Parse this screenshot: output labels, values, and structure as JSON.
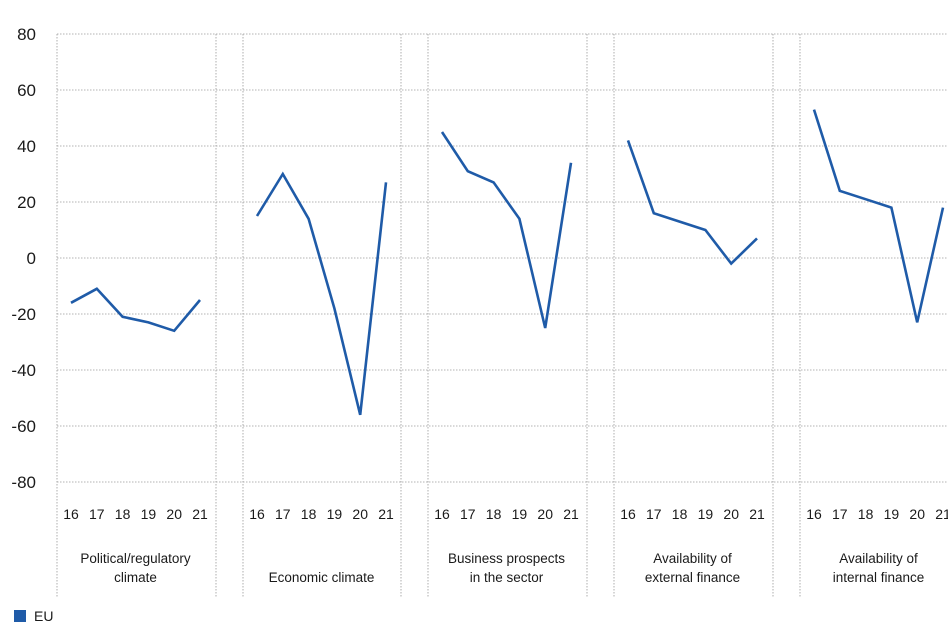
{
  "chart_data": {
    "type": "line",
    "ylim": [
      -80,
      80
    ],
    "yticks": [
      80,
      60,
      40,
      20,
      0,
      -20,
      -40,
      -60,
      -80
    ],
    "grid": true,
    "legend_position": "bottom-left",
    "groups": [
      {
        "label_lines": [
          "Political/regulatory",
          "climate"
        ],
        "x": [
          "16",
          "17",
          "18",
          "19",
          "20",
          "21"
        ],
        "values": [
          -16,
          -11,
          -21,
          -23,
          -26,
          -15
        ]
      },
      {
        "label_lines": [
          "Economic climate"
        ],
        "x": [
          "16",
          "17",
          "18",
          "19",
          "20",
          "21"
        ],
        "values": [
          15,
          30,
          14,
          -18,
          -56,
          27
        ]
      },
      {
        "label_lines": [
          "Business prospects",
          "in the sector"
        ],
        "x": [
          "16",
          "17",
          "18",
          "19",
          "20",
          "21"
        ],
        "values": [
          45,
          31,
          27,
          14,
          -25,
          34
        ]
      },
      {
        "label_lines": [
          "Availability of",
          "external finance"
        ],
        "x": [
          "16",
          "17",
          "18",
          "19",
          "20",
          "21"
        ],
        "values": [
          42,
          16,
          13,
          10,
          -2,
          7
        ]
      },
      {
        "label_lines": [
          "Availability of",
          "internal finance"
        ],
        "x": [
          "16",
          "17",
          "18",
          "19",
          "20",
          "21"
        ],
        "values": [
          53,
          24,
          21,
          18,
          -23,
          18
        ]
      }
    ],
    "series": [
      {
        "name": "EU",
        "color": "#1f5ba8"
      }
    ]
  }
}
